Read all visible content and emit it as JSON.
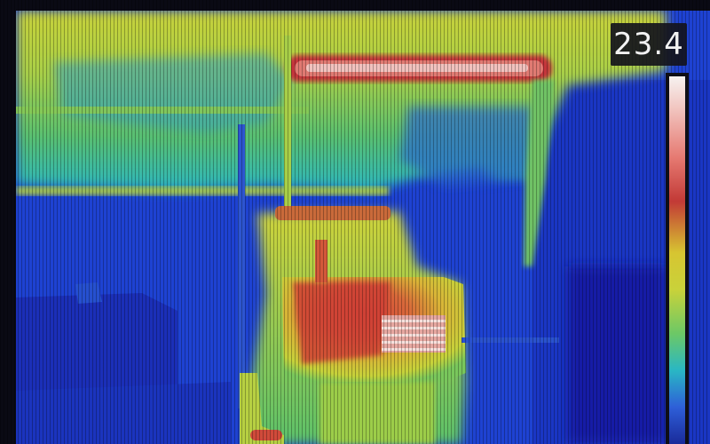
{
  "thermal_view": {
    "temperature_readout": "23.4",
    "scale_colors": [
      "#f6f2f0",
      "#e67a72",
      "#c23a36",
      "#d7c531",
      "#6cc866",
      "#29b7c4",
      "#2e5fd8",
      "#1a2a9a"
    ]
  }
}
